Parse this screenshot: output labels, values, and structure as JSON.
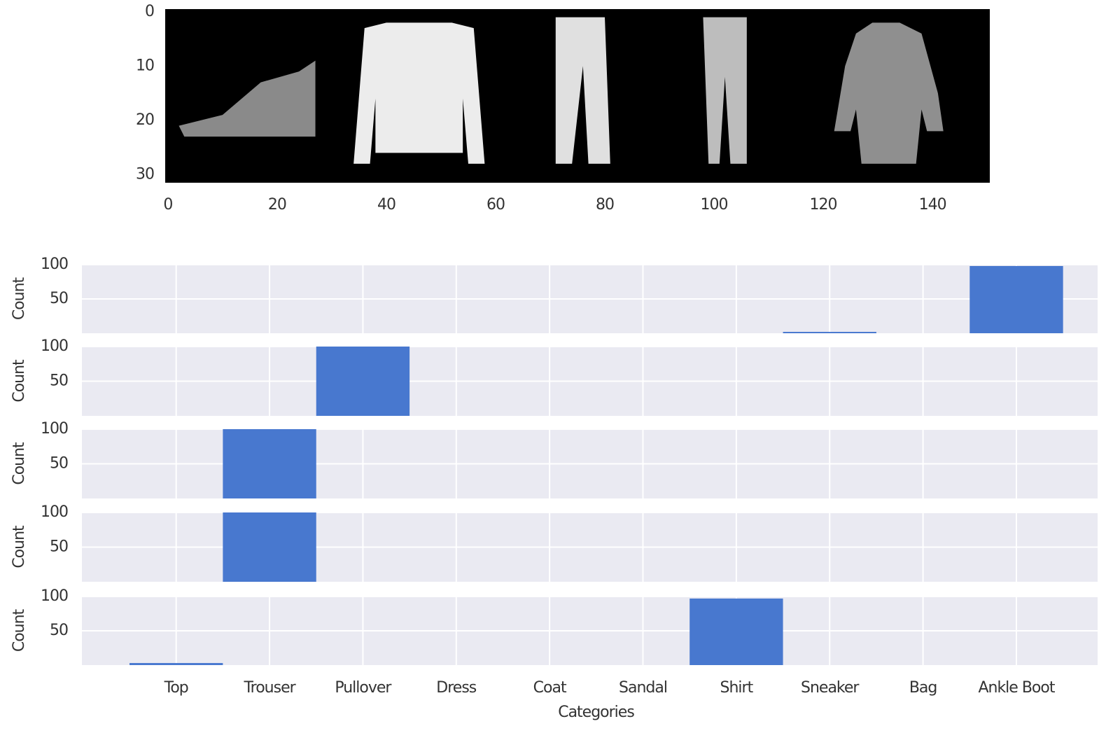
{
  "chart_data": [
    {
      "type": "image",
      "xlim": [
        -0.5,
        150.5
      ],
      "ylim": [
        31.5,
        -0.5
      ],
      "xticks": [
        0,
        20,
        40,
        60,
        80,
        100,
        120,
        140
      ],
      "yticks": [
        0,
        10,
        20,
        30
      ]
    },
    {
      "type": "bar",
      "ylabel": "Count",
      "values": [
        0,
        0,
        0,
        0,
        0,
        0,
        0,
        2,
        0,
        98
      ],
      "color": "#4878cf",
      "xlim": [
        -1.01,
        9.87
      ],
      "ylim": [
        0,
        100
      ],
      "yticks": [
        50,
        100
      ],
      "grid": true
    },
    {
      "type": "bar",
      "ylabel": "Count",
      "values": [
        0,
        0,
        100,
        0,
        0,
        0,
        0,
        0,
        0,
        0
      ],
      "color": "#4878cf",
      "xlim": [
        -1.01,
        9.87
      ],
      "ylim": [
        0,
        100
      ],
      "yticks": [
        50,
        100
      ],
      "grid": true
    },
    {
      "type": "bar",
      "ylabel": "Count",
      "values": [
        0,
        100,
        0,
        0,
        0,
        0,
        0,
        0,
        0,
        0
      ],
      "color": "#4878cf",
      "xlim": [
        -1.01,
        9.87
      ],
      "ylim": [
        0,
        100
      ],
      "yticks": [
        50,
        100
      ],
      "grid": true
    },
    {
      "type": "bar",
      "ylabel": "Count",
      "values": [
        0,
        100,
        0,
        0,
        0,
        0,
        0,
        0,
        0,
        0
      ],
      "color": "#4878cf",
      "xlim": [
        -1.01,
        9.87
      ],
      "ylim": [
        0,
        100
      ],
      "yticks": [
        50,
        100
      ],
      "grid": true
    },
    {
      "type": "bar",
      "ylabel": "Count",
      "xlabel": "Categories",
      "categories": [
        "Top",
        "Trouser",
        "Pullover",
        "Dress",
        "Coat",
        "Sandal",
        "Shirt",
        "Sneaker",
        "Bag",
        "Ankle Boot"
      ],
      "values": [
        3,
        0,
        0,
        0,
        0,
        0,
        97,
        0,
        0,
        0
      ],
      "color": "#4878cf",
      "xlim": [
        -1.01,
        9.87
      ],
      "ylim": [
        0,
        100
      ],
      "yticks": [
        50,
        100
      ],
      "grid": true
    }
  ]
}
